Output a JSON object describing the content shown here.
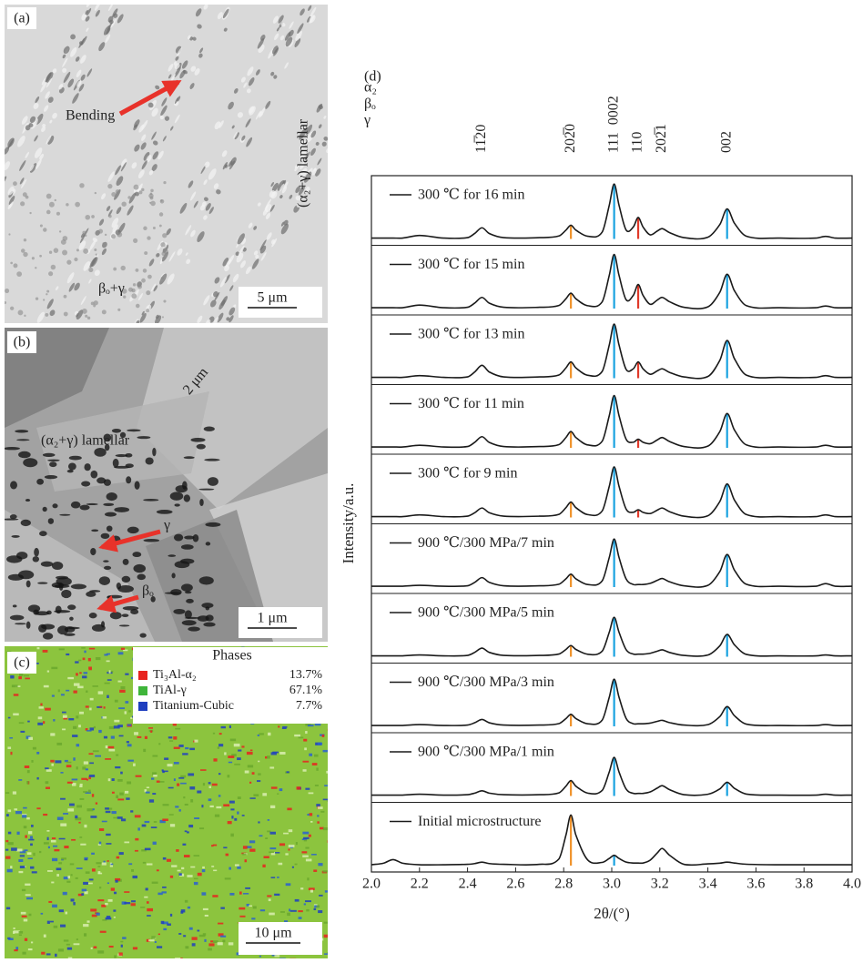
{
  "micrographs": [
    {
      "label": "(a)",
      "scale_bar": "5 μm",
      "annotations": [
        "Bending",
        "(α₂+γ) lamellar",
        "βₒ+γ"
      ]
    },
    {
      "label": "(b)",
      "scale_bar": "1 μm",
      "annotations": [
        "2 μm",
        "(α₂+γ) lamellar",
        "γ",
        "βₒ"
      ]
    },
    {
      "label": "(c)",
      "scale_bar": "10 μm",
      "phases_title": "Phases",
      "phases": [
        {
          "name": "Ti₃Al-α₂",
          "fraction": "13.7%",
          "color": "#e8231f"
        },
        {
          "name": "TiAl-γ",
          "fraction": "67.1%",
          "color": "#3fb53a"
        },
        {
          "name": "Titanium-Cubic",
          "fraction": "7.7%",
          "color": "#1f3fbf"
        }
      ]
    }
  ],
  "chart_data": {
    "type": "line",
    "panel_label": "(d)",
    "x_label": "2θ/(°)",
    "y_label": "Intensity/a.u.",
    "phase_legend": [
      {
        "text": "α₂",
        "color": "#222222"
      },
      {
        "text": "βₒ",
        "color": "#e03a2a"
      },
      {
        "text": "γ",
        "color": "#1aa3e0"
      }
    ],
    "peak_labels": [
      {
        "text": "11̅20",
        "x": 2.46,
        "color": "#222222"
      },
      {
        "text": "202̅0",
        "x": 2.83,
        "color": "#222222"
      },
      {
        "text": "111",
        "x": 3.01,
        "color": "#1aa3e0"
      },
      {
        "text": "0002",
        "x": 3.01,
        "color": "#222222"
      },
      {
        "text": "110",
        "x": 3.11,
        "color": "#e03a2a"
      },
      {
        "text": "202̅1",
        "x": 3.21,
        "color": "#222222"
      },
      {
        "text": "002",
        "x": 3.48,
        "color": "#1aa3e0"
      }
    ],
    "xlim": [
      2.0,
      4.0
    ],
    "xticks": [
      {
        "value": 2.0,
        "label": "2.0"
      },
      2.2,
      2.4,
      2.6,
      2.8,
      {
        "value": 3.0,
        "label": "3.0"
      },
      3.2,
      3.4,
      3.6,
      3.8,
      {
        "value": 4.0,
        "label": "4.0"
      }
    ],
    "ylim": [
      0,
      70
    ],
    "x": [
      2.0,
      2.05,
      2.09,
      2.13,
      2.2,
      2.3,
      2.4,
      2.43,
      2.46,
      2.49,
      2.55,
      2.7,
      2.78,
      2.81,
      2.83,
      2.85,
      2.9,
      2.96,
      2.99,
      3.01,
      3.03,
      3.06,
      3.09,
      3.11,
      3.13,
      3.16,
      3.19,
      3.21,
      3.24,
      3.3,
      3.4,
      3.45,
      3.48,
      3.51,
      3.56,
      3.7,
      3.85,
      3.89,
      3.93,
      4.0
    ],
    "series": [
      {
        "name": "300 ℃ for 16 min",
        "color": "#1a1a1a",
        "values": [
          1,
          1,
          1,
          1,
          4,
          1,
          1.5,
          6.4,
          13,
          6.4,
          1.5,
          1.5,
          3.4,
          10.4,
          16,
          10.4,
          3.1,
          7.9,
          39.6,
          64,
          39.6,
          10.3,
          14,
          25,
          14,
          4.8,
          9.3,
          12,
          7.4,
          1.5,
          2,
          16.9,
          35,
          18.5,
          3.2,
          1,
          1,
          3,
          1,
          1
        ],
        "ref_lines": [
          {
            "x": 2.83,
            "color": "#f0932b"
          },
          {
            "x": 3.01,
            "color": "#1aa3e0"
          },
          {
            "x": 3.11,
            "color": "#e03a2a"
          },
          {
            "x": 3.48,
            "color": "#1aa3e0"
          }
        ]
      },
      {
        "name": "300 ℃ for 15 min",
        "color": "#1a1a1a",
        "values": [
          1,
          1,
          1,
          1,
          4,
          1,
          1.5,
          6.4,
          13,
          6.4,
          1.5,
          1.5,
          3.6,
          11.6,
          18,
          11.6,
          3.3,
          7.8,
          39,
          63,
          39,
          10.2,
          15.5,
          28,
          15.5,
          5,
          10,
          13,
          8,
          1.5,
          2,
          19.1,
          40,
          21,
          3.4,
          1,
          1,
          3,
          1,
          1
        ],
        "ref_lines": [
          {
            "x": 2.83,
            "color": "#f0932b"
          },
          {
            "x": 3.01,
            "color": "#1aa3e0"
          },
          {
            "x": 3.11,
            "color": "#e03a2a"
          },
          {
            "x": 3.48,
            "color": "#1aa3e0"
          }
        ]
      },
      {
        "name": "300 ℃ for 13 min",
        "color": "#1a1a1a",
        "values": [
          1,
          1,
          1,
          1,
          3,
          1,
          1.5,
          7.3,
          15,
          7.3,
          1.5,
          1.5,
          3.7,
          12.2,
          19,
          12.2,
          3.4,
          7.8,
          39,
          63,
          39,
          10.2,
          11,
          19,
          11,
          4.6,
          8.6,
          11,
          6.8,
          1.5,
          2,
          20.9,
          44,
          23,
          3.6,
          1,
          1,
          3,
          1,
          1
        ],
        "ref_lines": [
          {
            "x": 2.83,
            "color": "#f0932b"
          },
          {
            "x": 3.01,
            "color": "#1aa3e0"
          },
          {
            "x": 3.11,
            "color": "#e03a2a"
          },
          {
            "x": 3.48,
            "color": "#1aa3e0"
          }
        ]
      },
      {
        "name": "300 ℃ for 11 min",
        "color": "#1a1a1a",
        "values": [
          1,
          1,
          1,
          1,
          3,
          1,
          1.5,
          6.4,
          13,
          6.4,
          1.5,
          1.5,
          3.7,
          12.2,
          19,
          12.2,
          3.4,
          7.6,
          37.8,
          61,
          37.8,
          10,
          6.5,
          10,
          6.5,
          4.8,
          9.3,
          12,
          7.4,
          1.5,
          2,
          19.1,
          40,
          21,
          3.4,
          1,
          1,
          3,
          1,
          1
        ],
        "ref_lines": [
          {
            "x": 2.83,
            "color": "#f0932b"
          },
          {
            "x": 3.01,
            "color": "#1aa3e0"
          },
          {
            "x": 3.11,
            "color": "#e03a2a"
          },
          {
            "x": 3.48,
            "color": "#1aa3e0"
          }
        ]
      },
      {
        "name": "300 ℃ for 9 min",
        "color": "#1a1a1a",
        "values": [
          1,
          1,
          1,
          1,
          3,
          1,
          1.5,
          5.5,
          11,
          5.5,
          1.5,
          1.5,
          3.6,
          11.6,
          18,
          11.6,
          3.3,
          7.5,
          36.6,
          59,
          36.6,
          9.7,
          6,
          9,
          6,
          4.6,
          8.6,
          11,
          6.8,
          1.5,
          2,
          18.7,
          39,
          20.5,
          3.4,
          1,
          1,
          3,
          1,
          1
        ],
        "ref_lines": [
          {
            "x": 2.83,
            "color": "#f0932b"
          },
          {
            "x": 3.01,
            "color": "#1aa3e0"
          },
          {
            "x": 3.11,
            "color": "#e03a2a"
          },
          {
            "x": 3.48,
            "color": "#1aa3e0"
          }
        ]
      },
      {
        "name": "900 ℃/300 MPa/7 min",
        "color": "#1a1a1a",
        "values": [
          1,
          1,
          1,
          1,
          2,
          1,
          1.5,
          5.5,
          11,
          5.5,
          1.5,
          1.5,
          3.3,
          9.8,
          15,
          9.8,
          3,
          7.2,
          34.8,
          56,
          34.8,
          9.4,
          3,
          3,
          3,
          4.4,
          7.9,
          10,
          6.2,
          1.5,
          2,
          18.2,
          38,
          20,
          3.3,
          1,
          1,
          4,
          1,
          1
        ],
        "ref_lines": [
          {
            "x": 2.83,
            "color": "#f0932b"
          },
          {
            "x": 3.01,
            "color": "#1aa3e0"
          },
          {
            "x": 3.48,
            "color": "#1aa3e0"
          }
        ]
      },
      {
        "name": "900 ℃/300 MPa/5 min",
        "color": "#1a1a1a",
        "values": [
          1,
          1,
          1,
          1,
          2,
          1,
          1.5,
          5.1,
          10,
          5.1,
          1.5,
          1.5,
          3.1,
          8.6,
          13,
          8.6,
          2.9,
          6.4,
          28.8,
          46,
          28.8,
          8.2,
          3,
          3,
          3,
          4,
          6.5,
          8,
          5,
          1.5,
          2,
          12.8,
          26,
          14,
          2.7,
          1,
          1,
          2,
          1,
          1
        ],
        "ref_lines": [
          {
            "x": 2.83,
            "color": "#f0932b"
          },
          {
            "x": 3.01,
            "color": "#1aa3e0"
          },
          {
            "x": 3.48,
            "color": "#1aa3e0"
          }
        ]
      },
      {
        "name": "900 ℃/300 MPa/3 min",
        "color": "#1a1a1a",
        "values": [
          1,
          1,
          1,
          1,
          2,
          1,
          1.5,
          4.2,
          8,
          4.2,
          1.5,
          1.5,
          3.2,
          9.2,
          14,
          9.2,
          3,
          7.2,
          34.2,
          55,
          34.2,
          9.2,
          3,
          3,
          3,
          3.8,
          5.8,
          7,
          4.4,
          1.5,
          2,
          11.5,
          23,
          12.5,
          2.6,
          1,
          1,
          2,
          1,
          1
        ],
        "ref_lines": [
          {
            "x": 2.83,
            "color": "#f0932b"
          },
          {
            "x": 3.01,
            "color": "#1aa3e0"
          },
          {
            "x": 3.48,
            "color": "#1aa3e0"
          }
        ]
      },
      {
        "name": "900 ℃/300 MPa/1 min",
        "color": "#1a1a1a",
        "values": [
          1,
          1,
          1,
          1,
          2,
          1,
          1.5,
          3.3,
          6,
          3.3,
          1.5,
          1.5,
          3.6,
          11.6,
          18,
          11.6,
          3.3,
          6.4,
          28.2,
          45,
          28.2,
          8,
          3,
          3,
          3,
          4.8,
          9.3,
          12,
          7.4,
          1.5,
          2,
          8.3,
          16,
          9,
          2.2,
          1,
          1,
          2,
          1,
          1
        ],
        "ref_lines": [
          {
            "x": 2.83,
            "color": "#f0932b"
          },
          {
            "x": 3.01,
            "color": "#1aa3e0"
          },
          {
            "x": 3.48,
            "color": "#1aa3e0"
          }
        ]
      },
      {
        "name": "Initial microstructure",
        "color": "#1a1a1a",
        "values": [
          1,
          2.8,
          7,
          2.8,
          1,
          1,
          1.5,
          2.4,
          4,
          2.4,
          1.5,
          1.5,
          7.7,
          36.2,
          59,
          36.2,
          6.6,
          3.7,
          8.4,
          12,
          8.4,
          4.1,
          3,
          3,
          3,
          6.4,
          14.9,
          20,
          12.2,
          1.5,
          2,
          2.9,
          4,
          3,
          1.6,
          1,
          1,
          1,
          1,
          1
        ],
        "ref_lines": [
          {
            "x": 2.83,
            "color": "#f0932b"
          },
          {
            "x": 3.01,
            "color": "#1aa3e0"
          }
        ]
      }
    ]
  }
}
